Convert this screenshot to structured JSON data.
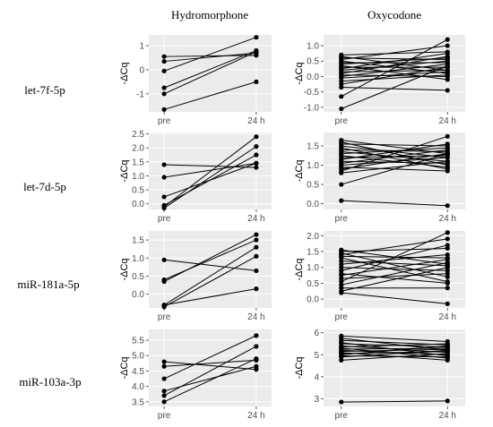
{
  "column_titles": [
    "Hydromorphone",
    "Oxycodone"
  ],
  "row_titles": [
    "let-7f-5p",
    "let-7d-5p",
    "miR-181a-5p",
    "miR-103a-3p"
  ],
  "chart_data": [
    {
      "type": "line",
      "row": 0,
      "col": 0,
      "x": [
        "pre",
        "24 h"
      ],
      "ylabel": "-ΔCq",
      "ylim": [
        -1.75,
        1.45
      ],
      "yticks": [
        -1,
        0,
        1
      ],
      "pairs": [
        [
          0.55,
          0.6
        ],
        [
          0.35,
          0.7
        ],
        [
          -0.05,
          1.35
        ],
        [
          -0.75,
          0.8
        ],
        [
          -1.0,
          0.75
        ],
        [
          -1.65,
          -0.5
        ]
      ]
    },
    {
      "type": "line",
      "row": 0,
      "col": 1,
      "x": [
        "pre",
        "24 h"
      ],
      "ylabel": "-ΔCq",
      "ylim": [
        -1.15,
        1.35
      ],
      "yticks": [
        -1.0,
        -0.5,
        0.0,
        0.5,
        1.0
      ],
      "pairs": [
        [
          0.7,
          0.8
        ],
        [
          0.65,
          0.2
        ],
        [
          0.6,
          0.55
        ],
        [
          0.55,
          1.0
        ],
        [
          0.5,
          0.1
        ],
        [
          0.45,
          0.45
        ],
        [
          0.4,
          0.6
        ],
        [
          0.35,
          -0.1
        ],
        [
          0.3,
          0.3
        ],
        [
          0.25,
          0.75
        ],
        [
          0.2,
          0.5
        ],
        [
          0.15,
          0.2
        ],
        [
          0.1,
          0.65
        ],
        [
          0.05,
          0.0
        ],
        [
          0.0,
          0.4
        ],
        [
          -0.05,
          0.15
        ],
        [
          -0.15,
          0.05
        ],
        [
          -0.25,
          0.3
        ],
        [
          -0.35,
          -0.45
        ],
        [
          -0.65,
          1.2
        ],
        [
          -1.05,
          0.35
        ]
      ]
    },
    {
      "type": "line",
      "row": 1,
      "col": 0,
      "x": [
        "pre",
        "24 h"
      ],
      "ylabel": "-ΔCq",
      "ylim": [
        -0.2,
        2.55
      ],
      "yticks": [
        0.0,
        0.5,
        1.0,
        1.5,
        2.0,
        2.5
      ],
      "pairs": [
        [
          1.4,
          1.3
        ],
        [
          0.95,
          1.45
        ],
        [
          0.25,
          1.45
        ],
        [
          -0.05,
          1.75
        ],
        [
          -0.1,
          2.4
        ],
        [
          -0.15,
          2.05
        ]
      ]
    },
    {
      "type": "line",
      "row": 1,
      "col": 1,
      "x": [
        "pre",
        "24 h"
      ],
      "ylabel": "-ΔCq",
      "ylim": [
        -0.15,
        1.85
      ],
      "yticks": [
        0.0,
        0.5,
        1.0,
        1.5
      ],
      "pairs": [
        [
          1.65,
          1.3
        ],
        [
          1.6,
          1.0
        ],
        [
          1.55,
          1.5
        ],
        [
          1.5,
          1.2
        ],
        [
          1.45,
          0.9
        ],
        [
          1.4,
          1.35
        ],
        [
          1.35,
          1.1
        ],
        [
          1.3,
          1.45
        ],
        [
          1.25,
          0.95
        ],
        [
          1.2,
          1.25
        ],
        [
          1.15,
          1.55
        ],
        [
          1.1,
          1.05
        ],
        [
          1.05,
          1.4
        ],
        [
          1.0,
          1.2
        ],
        [
          0.95,
          0.85
        ],
        [
          0.9,
          1.3
        ],
        [
          0.85,
          1.75
        ],
        [
          0.8,
          1.1
        ],
        [
          0.5,
          1.3
        ],
        [
          0.08,
          -0.05
        ]
      ]
    },
    {
      "type": "line",
      "row": 2,
      "col": 0,
      "x": [
        "pre",
        "24 h"
      ],
      "ylabel": "-ΔCq",
      "ylim": [
        -0.38,
        1.75
      ],
      "yticks": [
        0.0,
        0.5,
        1.0,
        1.5
      ],
      "pairs": [
        [
          0.95,
          0.65
        ],
        [
          0.4,
          1.5
        ],
        [
          0.35,
          1.65
        ],
        [
          -0.3,
          1.3
        ],
        [
          -0.35,
          1.05
        ],
        [
          -0.3,
          0.15
        ]
      ]
    },
    {
      "type": "line",
      "row": 2,
      "col": 1,
      "x": [
        "pre",
        "24 h"
      ],
      "ylabel": "-ΔCq",
      "ylim": [
        -0.28,
        2.15
      ],
      "yticks": [
        0.0,
        0.5,
        1.0,
        1.5,
        2.0
      ],
      "pairs": [
        [
          1.55,
          1.1
        ],
        [
          1.5,
          1.6
        ],
        [
          1.45,
          0.7
        ],
        [
          1.4,
          1.9
        ],
        [
          1.35,
          1.3
        ],
        [
          1.3,
          0.55
        ],
        [
          1.2,
          1.05
        ],
        [
          1.1,
          1.4
        ],
        [
          1.0,
          0.9
        ],
        [
          0.9,
          1.7
        ],
        [
          0.8,
          0.5
        ],
        [
          0.75,
          1.25
        ],
        [
          0.65,
          0.8
        ],
        [
          0.55,
          2.1
        ],
        [
          0.45,
          1.15
        ],
        [
          0.35,
          0.35
        ],
        [
          0.25,
          1.0
        ],
        [
          0.2,
          -0.15
        ]
      ]
    },
    {
      "type": "line",
      "row": 3,
      "col": 0,
      "x": [
        "pre",
        "24 h"
      ],
      "ylabel": "-ΔCq",
      "ylim": [
        3.35,
        5.85
      ],
      "yticks": [
        3.5,
        4.0,
        4.5,
        5.0,
        5.5
      ],
      "pairs": [
        [
          4.8,
          4.55
        ],
        [
          4.65,
          4.85
        ],
        [
          4.25,
          5.65
        ],
        [
          3.85,
          4.65
        ],
        [
          3.7,
          5.3
        ],
        [
          3.5,
          4.9
        ]
      ]
    },
    {
      "type": "line",
      "row": 3,
      "col": 1,
      "x": [
        "pre",
        "24 h"
      ],
      "ylabel": "-ΔCq",
      "ylim": [
        2.65,
        6.15
      ],
      "yticks": [
        3,
        4,
        5,
        6
      ],
      "pairs": [
        [
          5.85,
          5.6
        ],
        [
          5.75,
          5.2
        ],
        [
          5.65,
          5.45
        ],
        [
          5.55,
          4.95
        ],
        [
          5.5,
          5.35
        ],
        [
          5.4,
          5.1
        ],
        [
          5.35,
          5.5
        ],
        [
          5.3,
          4.85
        ],
        [
          5.25,
          5.3
        ],
        [
          5.2,
          5.0
        ],
        [
          5.15,
          5.25
        ],
        [
          5.1,
          4.75
        ],
        [
          5.05,
          5.15
        ],
        [
          5.0,
          5.4
        ],
        [
          4.95,
          4.9
        ],
        [
          4.9,
          5.2
        ],
        [
          4.75,
          5.05
        ],
        [
          2.85,
          2.9
        ]
      ]
    }
  ]
}
